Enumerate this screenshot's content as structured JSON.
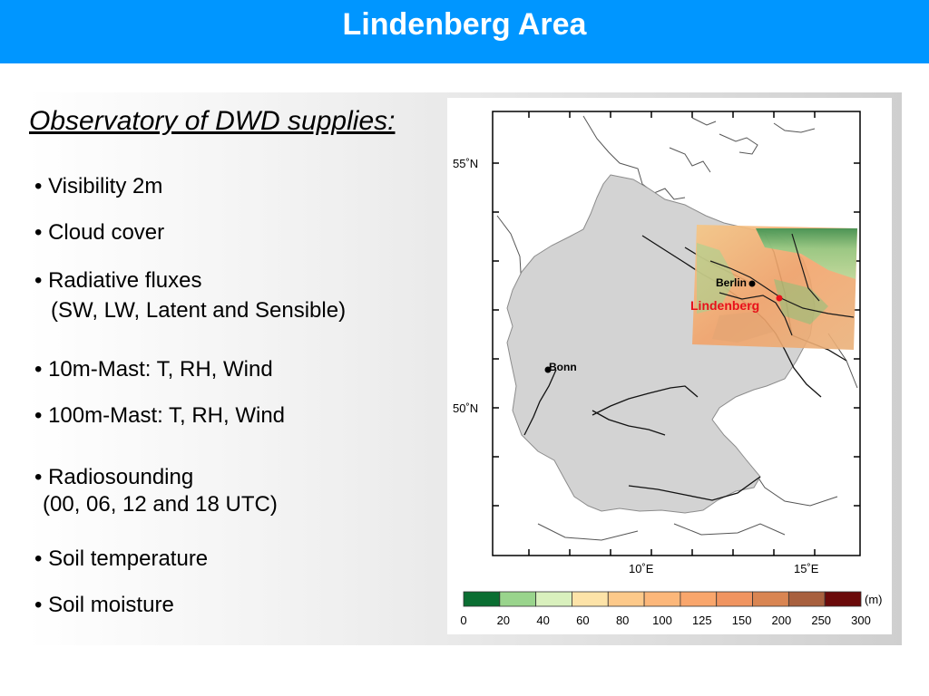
{
  "header": {
    "title": "Lindenberg Area"
  },
  "subtitle": "Observatory of DWD supplies:",
  "bullets": [
    {
      "text": "• Visibility 2m"
    },
    {
      "text": "• Cloud cover"
    },
    {
      "text": "• Radiative fluxes",
      "detail": "(SW, LW, Latent and Sensible)"
    },
    {
      "text": "• 10m-Mast: T, RH, Wind"
    },
    {
      "text": "• 100m-Mast: T, RH, Wind"
    },
    {
      "text": "• Radiosounding",
      "detail": "(00, 06, 12 and 18 UTC)"
    },
    {
      "text": "• Soil temperature"
    },
    {
      "text": "• Soil moisture"
    }
  ],
  "map": {
    "lat_labels": [
      "55˚N",
      "50˚N"
    ],
    "lon_labels": [
      "10˚E",
      "15˚E"
    ],
    "cities": {
      "berlin": "Berlin",
      "lindenberg": "Lindenberg",
      "bonn": "Bonn"
    },
    "colors": {
      "germany": "#d3d3d3",
      "lindenberg_label": "#e8101a",
      "title_bar": "#0096ff"
    },
    "legend": {
      "unit": "(m)",
      "ticks": [
        "0",
        "20",
        "40",
        "60",
        "80",
        "100",
        "125",
        "150",
        "200",
        "250",
        "300"
      ],
      "colors": [
        "#0a6e32",
        "#99d48c",
        "#d9f0bd",
        "#fde3a8",
        "#fdc98a",
        "#fcb77a",
        "#f9a66c",
        "#f09460",
        "#d98552",
        "#a8603e",
        "#6b0a0a"
      ]
    }
  }
}
